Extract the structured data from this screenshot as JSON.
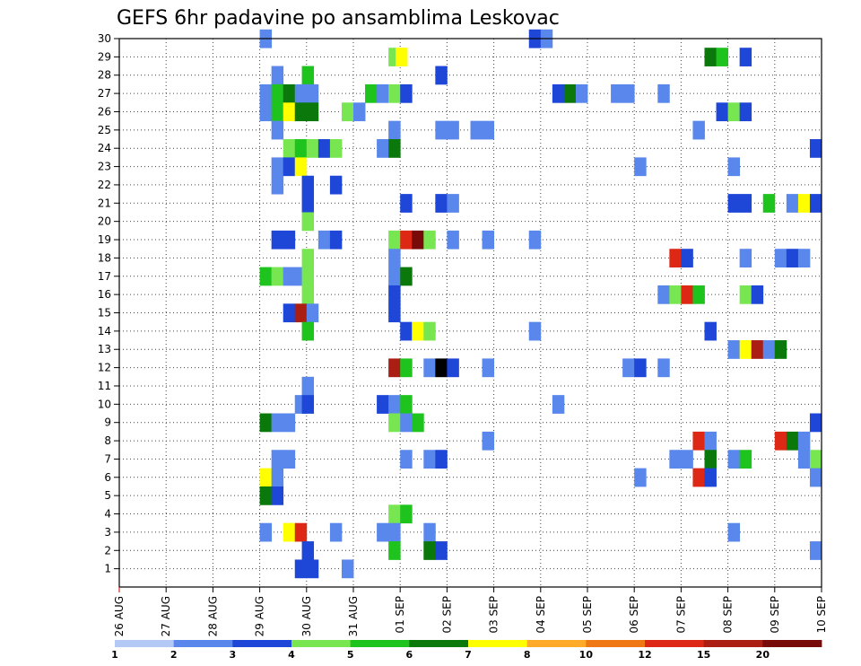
{
  "chart_data": {
    "type": "heatmap",
    "title": "GEFS 6hr padavine po ansamblima Leskovac",
    "x_tick_labels": [
      "26 AUG",
      "27 AUG",
      "28 AUG",
      "29 AUG",
      "30 AUG",
      "31 AUG",
      "01 SEP",
      "02 SEP",
      "03 SEP",
      "04 SEP",
      "05 SEP",
      "06 SEP",
      "07 SEP",
      "08 SEP",
      "09 SEP",
      "10 SEP"
    ],
    "y_tick_labels": [
      "1",
      "2",
      "3",
      "4",
      "5",
      "6",
      "7",
      "8",
      "9",
      "10",
      "11",
      "12",
      "13",
      "14",
      "15",
      "16",
      "17",
      "18",
      "19",
      "20",
      "21",
      "22",
      "23",
      "24",
      "25",
      "26",
      "27",
      "28",
      "29",
      "30"
    ],
    "x_range_days": [
      0,
      15
    ],
    "y_range": [
      0,
      30
    ],
    "time_step_days": 0.25,
    "grid": "dotted",
    "legend": {
      "placement": "bottom",
      "labels": [
        "1",
        "2",
        "3",
        "4",
        "5",
        "6",
        "7",
        "8",
        "10",
        "12",
        "15",
        "20"
      ],
      "colors": [
        "#b4c8f5",
        "#5a87eb",
        "#1e46d7",
        "#78e650",
        "#1ec31e",
        "#0a780a",
        "#ffff00",
        "#ffaa28",
        "#f07814",
        "#dc2814",
        "#aa1e14",
        "#780a0a"
      ]
    },
    "cells": [
      [
        3.0,
        30,
        1
      ],
      [
        8.75,
        30,
        2
      ],
      [
        9.0,
        30,
        1
      ],
      [
        5.75,
        29,
        3
      ],
      [
        5.9,
        29,
        6
      ],
      [
        12.5,
        29,
        5
      ],
      [
        12.75,
        29,
        4
      ],
      [
        13.25,
        29,
        2
      ],
      [
        3.25,
        28,
        1
      ],
      [
        3.9,
        28,
        4
      ],
      [
        6.75,
        28,
        2
      ],
      [
        3.0,
        27,
        1
      ],
      [
        3.25,
        27,
        4
      ],
      [
        3.5,
        27,
        5
      ],
      [
        3.75,
        27,
        1
      ],
      [
        4.0,
        27,
        1
      ],
      [
        5.25,
        27,
        4
      ],
      [
        5.5,
        27,
        1
      ],
      [
        5.75,
        27,
        3
      ],
      [
        6.0,
        27,
        2
      ],
      [
        9.25,
        27,
        2
      ],
      [
        9.5,
        27,
        5
      ],
      [
        9.75,
        27,
        1
      ],
      [
        10.5,
        27,
        1
      ],
      [
        10.75,
        27,
        1
      ],
      [
        11.5,
        27,
        1
      ],
      [
        3.0,
        26,
        1
      ],
      [
        3.25,
        26,
        4
      ],
      [
        3.5,
        26,
        6
      ],
      [
        3.75,
        26,
        5
      ],
      [
        4.0,
        26,
        5
      ],
      [
        4.75,
        26,
        3
      ],
      [
        5.0,
        26,
        1
      ],
      [
        12.75,
        26,
        2
      ],
      [
        13.0,
        26,
        3
      ],
      [
        13.25,
        26,
        2
      ],
      [
        3.25,
        25,
        1
      ],
      [
        5.75,
        25,
        1
      ],
      [
        6.75,
        25,
        1
      ],
      [
        7.0,
        25,
        1
      ],
      [
        7.5,
        25,
        1
      ],
      [
        7.75,
        25,
        1
      ],
      [
        12.25,
        25,
        1
      ],
      [
        3.5,
        24,
        3
      ],
      [
        3.75,
        24,
        4
      ],
      [
        4.0,
        24,
        3
      ],
      [
        4.25,
        24,
        2
      ],
      [
        4.5,
        24,
        3
      ],
      [
        5.5,
        24,
        1
      ],
      [
        5.75,
        24,
        5
      ],
      [
        14.75,
        24,
        2
      ],
      [
        3.25,
        23,
        1
      ],
      [
        3.5,
        23,
        2
      ],
      [
        3.75,
        23,
        6
      ],
      [
        11.0,
        23,
        1
      ],
      [
        13.0,
        23,
        1
      ],
      [
        3.25,
        22,
        1
      ],
      [
        3.9,
        22,
        2
      ],
      [
        4.5,
        22,
        2
      ],
      [
        3.9,
        21,
        2
      ],
      [
        6.0,
        21,
        2
      ],
      [
        6.75,
        21,
        2
      ],
      [
        7.0,
        21,
        1
      ],
      [
        13.0,
        21,
        2
      ],
      [
        13.25,
        21,
        2
      ],
      [
        13.75,
        21,
        4
      ],
      [
        14.25,
        21,
        1
      ],
      [
        14.5,
        21,
        6
      ],
      [
        14.75,
        21,
        2
      ],
      [
        3.9,
        20,
        3
      ],
      [
        3.25,
        19,
        2
      ],
      [
        3.5,
        19,
        2
      ],
      [
        4.25,
        19,
        1
      ],
      [
        4.5,
        19,
        2
      ],
      [
        5.75,
        19,
        3
      ],
      [
        6.0,
        19,
        9
      ],
      [
        6.25,
        19,
        11
      ],
      [
        6.5,
        19,
        3
      ],
      [
        7.0,
        19,
        1
      ],
      [
        7.75,
        19,
        1
      ],
      [
        8.75,
        19,
        1
      ],
      [
        3.9,
        18,
        3
      ],
      [
        5.75,
        18,
        1
      ],
      [
        11.75,
        18,
        9
      ],
      [
        12.0,
        18,
        2
      ],
      [
        13.25,
        18,
        1
      ],
      [
        14.0,
        18,
        1
      ],
      [
        14.25,
        18,
        2
      ],
      [
        14.5,
        18,
        1
      ],
      [
        3.0,
        17,
        4
      ],
      [
        3.25,
        17,
        3
      ],
      [
        3.5,
        17,
        1
      ],
      [
        3.75,
        17,
        1
      ],
      [
        3.9,
        17,
        3
      ],
      [
        5.75,
        17,
        1
      ],
      [
        6.0,
        17,
        5
      ],
      [
        3.9,
        16,
        3
      ],
      [
        5.75,
        16,
        2
      ],
      [
        11.5,
        16,
        1
      ],
      [
        11.75,
        16,
        3
      ],
      [
        12.0,
        16,
        9
      ],
      [
        12.25,
        16,
        4
      ],
      [
        13.25,
        16,
        3
      ],
      [
        13.5,
        16,
        2
      ],
      [
        3.5,
        15,
        2
      ],
      [
        3.75,
        15,
        10
      ],
      [
        4.0,
        15,
        1
      ],
      [
        5.75,
        15,
        2
      ],
      [
        3.9,
        14,
        4
      ],
      [
        6.0,
        14,
        2
      ],
      [
        6.25,
        14,
        6
      ],
      [
        6.5,
        14,
        3
      ],
      [
        8.75,
        14,
        1
      ],
      [
        12.5,
        14,
        2
      ],
      [
        13.0,
        13,
        1
      ],
      [
        13.25,
        13,
        6
      ],
      [
        13.5,
        13,
        10
      ],
      [
        13.75,
        13,
        1
      ],
      [
        14.0,
        13,
        5
      ],
      [
        5.75,
        12,
        10
      ],
      [
        6.0,
        12,
        4
      ],
      [
        6.5,
        12,
        1
      ],
      [
        6.75,
        12,
        12
      ],
      [
        7.0,
        12,
        2
      ],
      [
        7.75,
        12,
        1
      ],
      [
        10.75,
        12,
        1
      ],
      [
        11.0,
        12,
        2
      ],
      [
        11.5,
        12,
        1
      ],
      [
        3.9,
        11,
        1
      ],
      [
        3.75,
        10,
        1
      ],
      [
        3.9,
        10,
        2
      ],
      [
        5.5,
        10,
        2
      ],
      [
        5.75,
        10,
        1
      ],
      [
        6.0,
        10,
        4
      ],
      [
        9.25,
        10,
        1
      ],
      [
        3.0,
        9,
        5
      ],
      [
        3.25,
        9,
        1
      ],
      [
        3.5,
        9,
        1
      ],
      [
        5.75,
        9,
        3
      ],
      [
        6.0,
        9,
        1
      ],
      [
        6.25,
        9,
        4
      ],
      [
        14.75,
        9,
        2
      ],
      [
        7.75,
        8,
        1
      ],
      [
        12.25,
        8,
        9
      ],
      [
        12.5,
        8,
        1
      ],
      [
        14.0,
        8,
        9
      ],
      [
        14.25,
        8,
        5
      ],
      [
        14.5,
        8,
        1
      ],
      [
        3.25,
        7,
        1
      ],
      [
        3.5,
        7,
        1
      ],
      [
        6.0,
        7,
        1
      ],
      [
        6.5,
        7,
        1
      ],
      [
        6.75,
        7,
        2
      ],
      [
        11.75,
        7,
        1
      ],
      [
        12.0,
        7,
        1
      ],
      [
        12.5,
        7,
        5
      ],
      [
        13.0,
        7,
        1
      ],
      [
        13.25,
        7,
        4
      ],
      [
        14.5,
        7,
        1
      ],
      [
        14.75,
        7,
        3
      ],
      [
        3.0,
        6,
        6
      ],
      [
        3.25,
        6,
        1
      ],
      [
        11.0,
        6,
        1
      ],
      [
        12.25,
        6,
        9
      ],
      [
        12.5,
        6,
        2
      ],
      [
        14.75,
        6,
        1
      ],
      [
        3.0,
        5,
        5
      ],
      [
        3.25,
        5,
        2
      ],
      [
        5.75,
        4,
        3
      ],
      [
        6.0,
        4,
        4
      ],
      [
        3.0,
        3,
        1
      ],
      [
        3.5,
        3,
        6
      ],
      [
        3.75,
        3,
        9
      ],
      [
        4.5,
        3,
        1
      ],
      [
        5.5,
        3,
        1
      ],
      [
        5.75,
        3,
        1
      ],
      [
        6.5,
        3,
        1
      ],
      [
        13.0,
        3,
        1
      ],
      [
        3.9,
        2,
        2
      ],
      [
        5.75,
        2,
        4
      ],
      [
        6.5,
        2,
        5
      ],
      [
        6.75,
        2,
        2
      ],
      [
        14.75,
        2,
        1
      ],
      [
        3.75,
        1,
        2
      ],
      [
        4.0,
        1,
        2
      ],
      [
        4.75,
        1,
        1
      ]
    ]
  }
}
